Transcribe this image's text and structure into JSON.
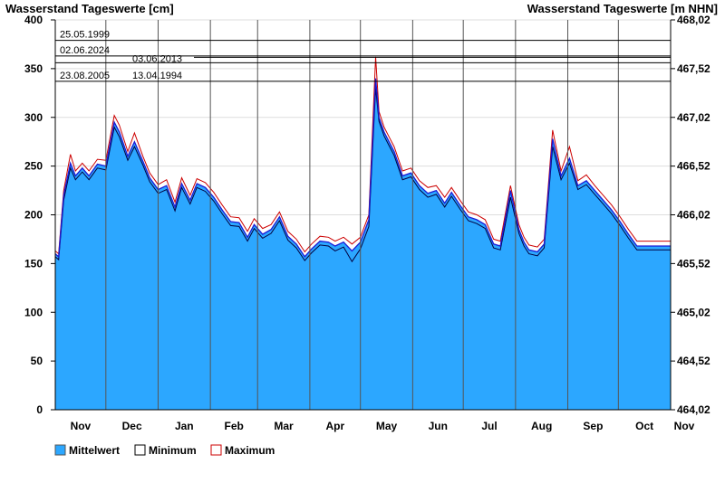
{
  "chart_data": {
    "type": "area",
    "title_left": "Wasserstand Tageswerte [cm]",
    "title_right": "Wasserstand Tageswerte [m NHN]",
    "ylim": [
      0,
      400
    ],
    "y_ticks": [
      "0",
      "50",
      "100",
      "150",
      "200",
      "250",
      "300",
      "350",
      "400"
    ],
    "y2_ticks": [
      "464,02",
      "464,52",
      "465,02",
      "465,52",
      "466,02",
      "466,52",
      "467,02",
      "467,52",
      "468,02"
    ],
    "x_tick_labels": [
      "Nov",
      "Dec",
      "Jan",
      "Feb",
      "Mar",
      "Apr",
      "May",
      "Jun",
      "Jul",
      "Aug",
      "Sep",
      "Oct",
      "Nov"
    ],
    "reference_lines": [
      {
        "value": 379,
        "labels": [
          "25.05.1999"
        ]
      },
      {
        "value": 363,
        "labels": [
          "02.06.2024"
        ]
      },
      {
        "value": 356,
        "labels": [
          "03.06.2013"
        ]
      },
      {
        "value": 337,
        "labels": [
          "23.08.2005",
          "13.04.1994"
        ]
      }
    ],
    "x_days": [
      0,
      2,
      5,
      9,
      12,
      16,
      20,
      25,
      30,
      35,
      38,
      43,
      47,
      52,
      56,
      61,
      66,
      71,
      75,
      80,
      84,
      89,
      94,
      99,
      104,
      109,
      114,
      118,
      123,
      128,
      133,
      138,
      143,
      148,
      152,
      157,
      162,
      166,
      171,
      176,
      181,
      186,
      190,
      192,
      195,
      198,
      201,
      206,
      211,
      216,
      221,
      226,
      231,
      235,
      240,
      245,
      250,
      255,
      260,
      264,
      270,
      275,
      278,
      281,
      286,
      290,
      295,
      300,
      305,
      310,
      315,
      320,
      325,
      330,
      335,
      340,
      345,
      350,
      355,
      360,
      365
    ],
    "series": [
      {
        "name": "Mittelwert",
        "values": [
          160,
          157,
          220,
          253,
          240,
          248,
          240,
          252,
          250,
          295,
          285,
          260,
          275,
          255,
          238,
          226,
          230,
          208,
          232,
          215,
          232,
          228,
          218,
          205,
          193,
          192,
          177,
          190,
          180,
          185,
          198,
          178,
          170,
          157,
          165,
          173,
          172,
          168,
          172,
          163,
          172,
          195,
          340,
          300,
          285,
          275,
          265,
          240,
          243,
          230,
          222,
          225,
          212,
          223,
          210,
          198,
          195,
          190,
          170,
          168,
          225,
          185,
          172,
          164,
          162,
          170,
          278,
          240,
          258,
          230,
          235,
          225,
          215,
          205,
          193,
          180,
          168,
          168,
          168,
          168,
          168
        ]
      },
      {
        "name": "Minimum",
        "values": [
          157,
          154,
          215,
          248,
          236,
          244,
          236,
          248,
          246,
          290,
          280,
          256,
          270,
          251,
          234,
          222,
          226,
          204,
          228,
          211,
          228,
          224,
          214,
          201,
          189,
          188,
          173,
          186,
          176,
          181,
          194,
          174,
          166,
          153,
          161,
          169,
          168,
          163,
          167,
          152,
          165,
          188,
          330,
          296,
          281,
          271,
          261,
          236,
          239,
          226,
          218,
          221,
          208,
          219,
          206,
          194,
          191,
          186,
          166,
          164,
          218,
          181,
          168,
          160,
          158,
          166,
          270,
          236,
          253,
          226,
          231,
          221,
          211,
          201,
          189,
          176,
          164,
          164,
          164,
          164,
          164
        ]
      },
      {
        "name": "Maximum",
        "values": [
          163,
          160,
          225,
          262,
          245,
          253,
          245,
          257,
          256,
          302,
          292,
          265,
          284,
          260,
          243,
          231,
          236,
          213,
          238,
          220,
          237,
          233,
          223,
          210,
          198,
          197,
          183,
          196,
          186,
          190,
          203,
          183,
          175,
          162,
          170,
          178,
          177,
          173,
          177,
          170,
          177,
          200,
          362,
          306,
          290,
          280,
          270,
          245,
          248,
          235,
          228,
          230,
          218,
          228,
          215,
          203,
          200,
          195,
          175,
          173,
          230,
          190,
          177,
          169,
          167,
          175,
          287,
          245,
          270,
          235,
          241,
          230,
          220,
          210,
          198,
          185,
          173,
          173,
          173,
          173,
          173
        ]
      }
    ],
    "legend": [
      {
        "label": "Mittelwert",
        "color": "#2ca7ff"
      },
      {
        "label": "Minimum",
        "color": "#000000"
      },
      {
        "label": "Maximum",
        "color": "#cc0000"
      }
    ],
    "colors": {
      "area": "#2ca7ff",
      "mean_line": "#1a1ad6",
      "min_line": "#000040",
      "max_line": "#cc0000"
    },
    "grid": true,
    "legend_position": "bottom-left"
  }
}
